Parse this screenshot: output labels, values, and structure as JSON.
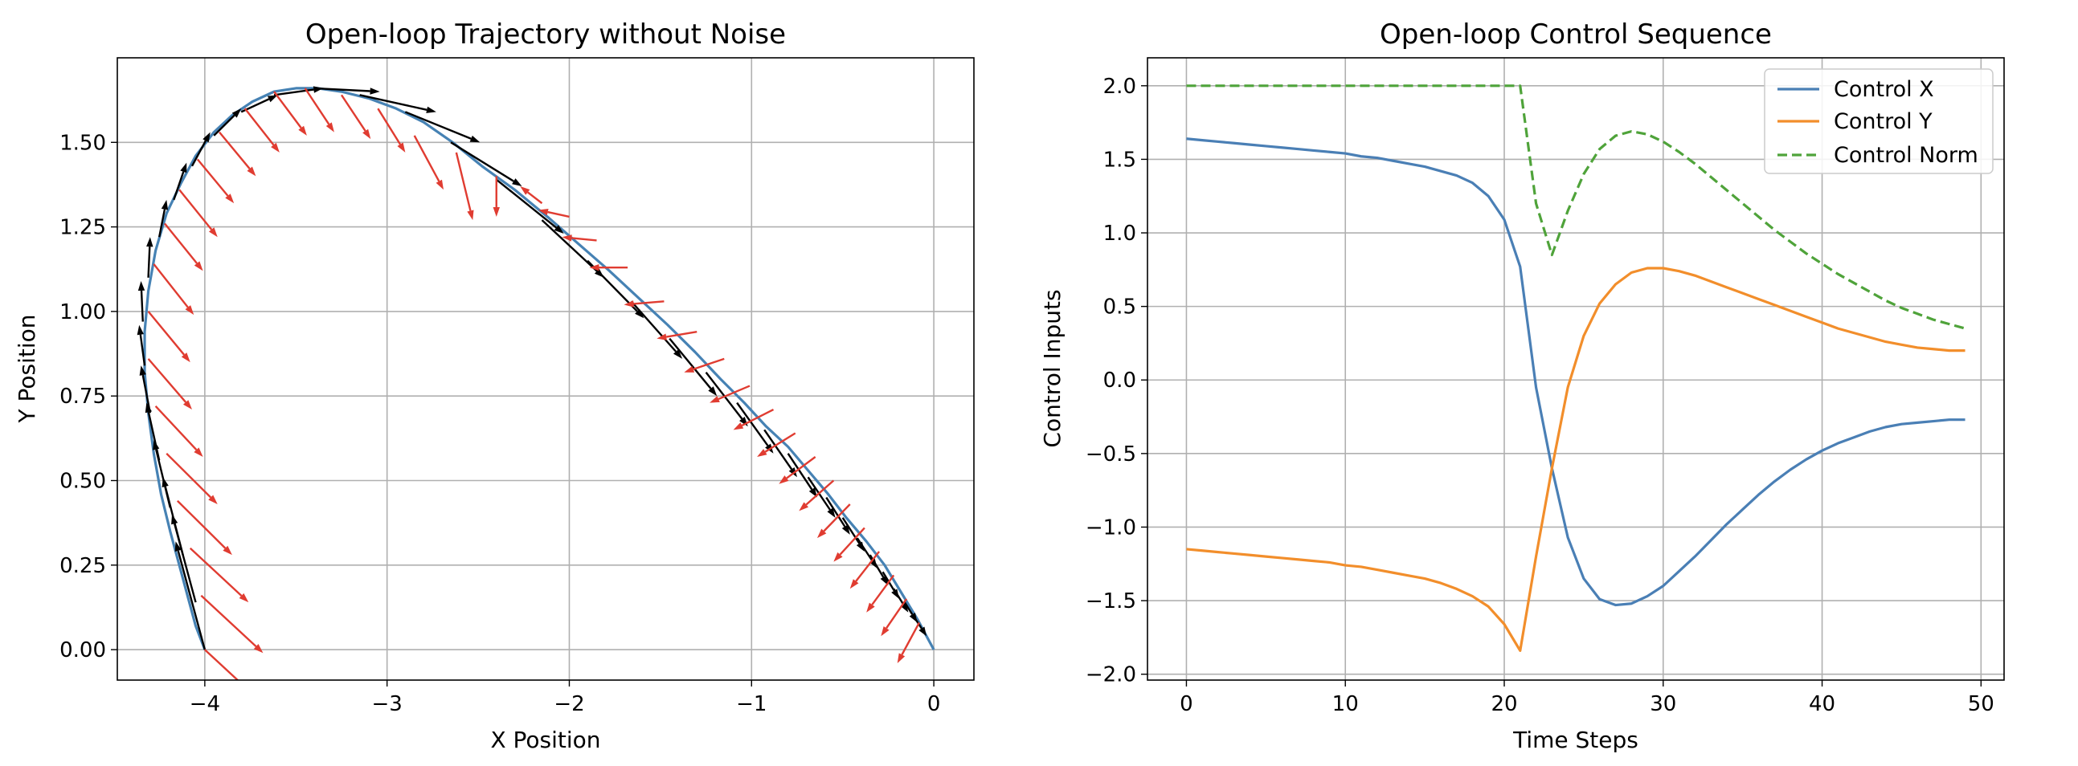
{
  "chart_data": [
    {
      "type": "quiver",
      "title": "Open-loop Trajectory without Noise",
      "xlabel": "X Position",
      "ylabel": "Y Position",
      "xlim": [
        -4.48,
        0.22
      ],
      "ylim": [
        -0.09,
        1.75
      ],
      "grid": true,
      "xticks": [
        -4,
        -3,
        -2,
        -1,
        0
      ],
      "xtick_labels": [
        "−4",
        "−3",
        "−2",
        "−1",
        "0"
      ],
      "yticks": [
        0.0,
        0.25,
        0.5,
        0.75,
        1.0,
        1.25,
        1.5
      ],
      "ytick_labels": [
        "0.00",
        "0.25",
        "0.50",
        "0.75",
        "1.00",
        "1.25",
        "1.50"
      ],
      "colors": {
        "trajectory": "#4682b4",
        "velocity_arrows": "#000000",
        "control_arrows": "#e03c31"
      },
      "series": [
        {
          "kind": "trajectory",
          "x": [
            0.0,
            -0.09,
            -0.18,
            -0.27,
            -0.37,
            -0.48,
            -0.58,
            -0.69,
            -0.8,
            -0.92,
            -1.04,
            -1.17,
            -1.31,
            -1.46,
            -1.62,
            -1.78,
            -1.95,
            -2.12,
            -2.3,
            -2.48,
            -2.64,
            -2.8,
            -2.95,
            -3.1,
            -3.25,
            -3.38,
            -3.5,
            -3.62,
            -3.74,
            -3.85,
            -3.95,
            -4.05,
            -4.13,
            -4.21,
            -4.27,
            -4.31,
            -4.33,
            -4.33,
            -4.31,
            -4.28,
            -4.24,
            -4.19,
            -4.14,
            -4.09,
            -4.05,
            -4.0
          ],
          "y": [
            0.0,
            0.09,
            0.17,
            0.25,
            0.32,
            0.39,
            0.46,
            0.53,
            0.6,
            0.66,
            0.73,
            0.8,
            0.88,
            0.96,
            1.04,
            1.12,
            1.2,
            1.28,
            1.36,
            1.43,
            1.5,
            1.56,
            1.6,
            1.63,
            1.65,
            1.66,
            1.66,
            1.65,
            1.62,
            1.58,
            1.53,
            1.46,
            1.38,
            1.29,
            1.18,
            1.06,
            0.94,
            0.82,
            0.7,
            0.58,
            0.46,
            0.35,
            0.25,
            0.15,
            0.07,
            0.0
          ]
        },
        {
          "kind": "velocity_arrows",
          "points": [
            [
              -0.05,
              0.05,
              0.0,
              0.0
            ],
            [
              -0.1,
              0.09,
              0.06,
              -0.05
            ],
            [
              -0.16,
              0.14,
              0.07,
              -0.06
            ],
            [
              -0.22,
              0.18,
              0.08,
              -0.07
            ],
            [
              -0.28,
              0.23,
              0.09,
              -0.08
            ],
            [
              -0.35,
              0.28,
              0.1,
              -0.09
            ],
            [
              -0.42,
              0.33,
              0.11,
              -0.09
            ],
            [
              -0.5,
              0.39,
              0.12,
              -0.1
            ],
            [
              -0.59,
              0.45,
              0.13,
              -0.11
            ],
            [
              -0.69,
              0.51,
              0.15,
              -0.12
            ],
            [
              -0.8,
              0.58,
              0.16,
              -0.13
            ],
            [
              -0.93,
              0.65,
              0.18,
              -0.14
            ],
            [
              -1.08,
              0.73,
              0.2,
              -0.15
            ],
            [
              -1.25,
              0.82,
              0.23,
              -0.16
            ],
            [
              -1.45,
              0.92,
              0.26,
              -0.17
            ],
            [
              -1.66,
              1.03,
              0.28,
              -0.17
            ],
            [
              -1.9,
              1.15,
              0.31,
              -0.17
            ],
            [
              -2.15,
              1.27,
              0.34,
              -0.17
            ],
            [
              -2.4,
              1.39,
              0.37,
              -0.16
            ],
            [
              -2.65,
              1.5,
              0.39,
              -0.13
            ],
            [
              -2.9,
              1.59,
              0.41,
              -0.09
            ],
            [
              -3.15,
              1.64,
              0.42,
              -0.05
            ],
            [
              -3.4,
              1.66,
              0.36,
              -0.01
            ],
            [
              -3.62,
              1.64,
              0.27,
              0.02
            ],
            [
              -3.8,
              1.59,
              0.2,
              0.05
            ],
            [
              -3.95,
              1.52,
              0.15,
              0.08
            ],
            [
              -4.07,
              1.43,
              0.1,
              0.1
            ],
            [
              -4.17,
              1.33,
              0.07,
              0.11
            ],
            [
              -4.25,
              1.22,
              0.04,
              0.11
            ],
            [
              -4.31,
              1.1,
              0.01,
              0.12
            ],
            [
              -4.34,
              0.97,
              -0.01,
              0.12
            ],
            [
              -4.33,
              0.84,
              -0.03,
              0.12
            ],
            [
              -4.3,
              0.7,
              -0.05,
              0.14
            ],
            [
              -4.25,
              0.56,
              -0.07,
              0.17
            ],
            [
              -4.19,
              0.42,
              -0.09,
              0.2
            ],
            [
              -4.12,
              0.28,
              -0.11,
              0.23
            ],
            [
              -4.05,
              0.14,
              -0.13,
              0.26
            ],
            [
              -4.0,
              0.0,
              -0.16,
              0.32
            ]
          ]
        },
        {
          "kind": "control_arrows",
          "points": [
            [
              -0.08,
              0.08,
              -0.12,
              -0.12
            ],
            [
              -0.15,
              0.15,
              -0.14,
              -0.11
            ],
            [
              -0.22,
              0.22,
              -0.15,
              -0.11
            ],
            [
              -0.3,
              0.29,
              -0.16,
              -0.11
            ],
            [
              -0.38,
              0.36,
              -0.17,
              -0.1
            ],
            [
              -0.46,
              0.43,
              -0.18,
              -0.1
            ],
            [
              -0.55,
              0.5,
              -0.19,
              -0.09
            ],
            [
              -0.65,
              0.57,
              -0.2,
              -0.08
            ],
            [
              -0.76,
              0.64,
              -0.21,
              -0.07
            ],
            [
              -0.88,
              0.71,
              -0.22,
              -0.06
            ],
            [
              -1.01,
              0.78,
              -0.22,
              -0.05
            ],
            [
              -1.15,
              0.86,
              -0.22,
              -0.04
            ],
            [
              -1.3,
              0.94,
              -0.22,
              -0.02
            ],
            [
              -1.48,
              1.03,
              -0.22,
              -0.01
            ],
            [
              -1.68,
              1.13,
              -0.21,
              0.0
            ],
            [
              -1.85,
              1.21,
              -0.19,
              0.01
            ],
            [
              -2.0,
              1.28,
              -0.17,
              0.02
            ],
            [
              -2.15,
              1.32,
              -0.12,
              0.05
            ],
            [
              -2.4,
              1.4,
              0.0,
              -0.12
            ],
            [
              -2.62,
              1.47,
              0.09,
              -0.2
            ],
            [
              -2.85,
              1.52,
              0.16,
              -0.16
            ],
            [
              -3.05,
              1.6,
              0.15,
              -0.13
            ],
            [
              -3.25,
              1.64,
              0.16,
              -0.13
            ],
            [
              -3.45,
              1.66,
              0.16,
              -0.13
            ],
            [
              -3.62,
              1.65,
              0.18,
              -0.13
            ],
            [
              -3.78,
              1.6,
              0.19,
              -0.13
            ],
            [
              -3.92,
              1.53,
              0.2,
              -0.13
            ],
            [
              -4.04,
              1.45,
              0.2,
              -0.13
            ],
            [
              -4.14,
              1.36,
              0.21,
              -0.14
            ],
            [
              -4.22,
              1.26,
              0.21,
              -0.14
            ],
            [
              -4.28,
              1.14,
              0.22,
              -0.15
            ],
            [
              -4.31,
              1.0,
              0.23,
              -0.15
            ],
            [
              -4.31,
              0.86,
              0.24,
              -0.15
            ],
            [
              -4.27,
              0.72,
              0.26,
              -0.15
            ],
            [
              -4.21,
              0.58,
              0.28,
              -0.15
            ],
            [
              -4.15,
              0.44,
              0.3,
              -0.16
            ],
            [
              -4.08,
              0.3,
              0.32,
              -0.16
            ],
            [
              -4.02,
              0.16,
              0.34,
              -0.17
            ],
            [
              -4.0,
              0.0,
              0.34,
              -0.17
            ]
          ]
        }
      ]
    },
    {
      "type": "line",
      "title": "Open-loop Control Sequence",
      "xlabel": "Time Steps",
      "ylabel": "Control Inputs",
      "xlim": [
        -2.45,
        51.45
      ],
      "ylim": [
        -2.04,
        2.19
      ],
      "grid": true,
      "legend_position": "top-right",
      "xticks": [
        0,
        10,
        20,
        30,
        40,
        50
      ],
      "xtick_labels": [
        "0",
        "10",
        "20",
        "30",
        "40",
        "50"
      ],
      "yticks": [
        -2.0,
        -1.5,
        -1.0,
        -0.5,
        0.0,
        0.5,
        1.0,
        1.5,
        2.0
      ],
      "ytick_labels": [
        "−2.0",
        "−1.5",
        "−1.0",
        "−0.5",
        "0.0",
        "0.5",
        "1.0",
        "1.5",
        "2.0"
      ],
      "x": [
        0,
        1,
        2,
        3,
        4,
        5,
        6,
        7,
        8,
        9,
        10,
        11,
        12,
        13,
        14,
        15,
        16,
        17,
        18,
        19,
        20,
        21,
        22,
        23,
        24,
        25,
        26,
        27,
        28,
        29,
        30,
        31,
        32,
        33,
        34,
        35,
        36,
        37,
        38,
        39,
        40,
        41,
        42,
        43,
        44,
        45,
        46,
        47,
        48,
        49
      ],
      "series": [
        {
          "name": "Control X",
          "color": "#4a7fb5",
          "dash": "solid",
          "values": [
            1.64,
            1.63,
            1.62,
            1.61,
            1.6,
            1.59,
            1.58,
            1.57,
            1.56,
            1.55,
            1.54,
            1.52,
            1.51,
            1.49,
            1.47,
            1.45,
            1.42,
            1.39,
            1.34,
            1.25,
            1.09,
            0.77,
            -0.05,
            -0.6,
            -1.07,
            -1.35,
            -1.49,
            -1.53,
            -1.52,
            -1.47,
            -1.4,
            -1.3,
            -1.2,
            -1.09,
            -0.98,
            -0.88,
            -0.78,
            -0.69,
            -0.61,
            -0.54,
            -0.48,
            -0.43,
            -0.39,
            -0.35,
            -0.32,
            -0.3,
            -0.29,
            -0.28,
            -0.27,
            -0.27
          ]
        },
        {
          "name": "Control Y",
          "color": "#f28e2b",
          "dash": "solid",
          "values": [
            -1.15,
            -1.16,
            -1.17,
            -1.18,
            -1.19,
            -1.2,
            -1.21,
            -1.22,
            -1.23,
            -1.24,
            -1.26,
            -1.27,
            -1.29,
            -1.31,
            -1.33,
            -1.35,
            -1.38,
            -1.42,
            -1.47,
            -1.54,
            -1.66,
            -1.84,
            -1.2,
            -0.6,
            -0.05,
            0.3,
            0.52,
            0.65,
            0.73,
            0.76,
            0.76,
            0.74,
            0.71,
            0.67,
            0.63,
            0.59,
            0.55,
            0.51,
            0.47,
            0.43,
            0.39,
            0.35,
            0.32,
            0.29,
            0.26,
            0.24,
            0.22,
            0.21,
            0.2,
            0.2
          ]
        },
        {
          "name": "Control Norm",
          "color": "#4fa33a",
          "dash": "dashed",
          "values": [
            2.0,
            2.0,
            2.0,
            2.0,
            2.0,
            2.0,
            2.0,
            2.0,
            2.0,
            2.0,
            2.0,
            2.0,
            2.0,
            2.0,
            2.0,
            2.0,
            2.0,
            2.0,
            2.0,
            2.0,
            2.0,
            2.0,
            1.2,
            0.85,
            1.15,
            1.4,
            1.57,
            1.66,
            1.69,
            1.67,
            1.62,
            1.55,
            1.47,
            1.38,
            1.29,
            1.2,
            1.11,
            1.02,
            0.94,
            0.86,
            0.79,
            0.72,
            0.66,
            0.6,
            0.54,
            0.49,
            0.45,
            0.41,
            0.38,
            0.35
          ]
        }
      ]
    }
  ]
}
